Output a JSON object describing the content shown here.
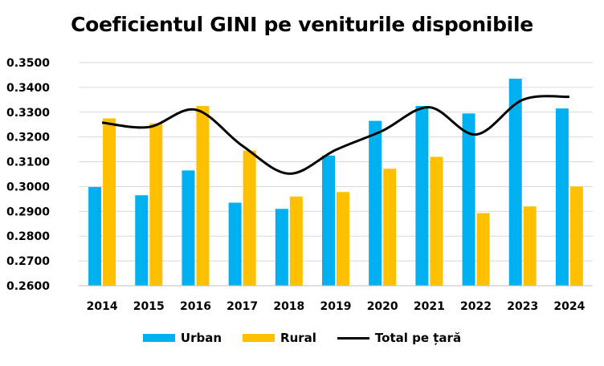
{
  "chart_data": {
    "type": "bar",
    "title": "Coeficientul GINI pe veniturile disponibile",
    "xlabel": "",
    "ylabel": "",
    "categories": [
      "2014",
      "2015",
      "2016",
      "2017",
      "2018",
      "2019",
      "2020",
      "2021",
      "2022",
      "2023",
      "2024"
    ],
    "ylim": [
      0.26,
      0.35
    ],
    "yticks": [
      "0.2600",
      "0.2700",
      "0.2800",
      "0.2900",
      "0.3000",
      "0.3100",
      "0.3200",
      "0.3300",
      "0.3400",
      "0.3500"
    ],
    "grid": true,
    "legend_position": "bottom",
    "series": [
      {
        "name": "Urban",
        "type": "bar",
        "color": "#00B0F0",
        "values": [
          0.2998,
          0.2965,
          0.3065,
          0.2935,
          0.291,
          0.3125,
          0.3265,
          0.3325,
          0.3295,
          0.3435,
          0.3315
        ]
      },
      {
        "name": "Rural",
        "type": "bar",
        "color": "#FFC000",
        "values": [
          0.3275,
          0.3255,
          0.3325,
          0.3145,
          0.296,
          0.2978,
          0.3072,
          0.312,
          0.2893,
          0.292,
          0.3
        ]
      },
      {
        "name": "Total pe țară",
        "type": "line",
        "color": "#000000",
        "values": [
          0.3258,
          0.324,
          0.331,
          0.3165,
          0.3052,
          0.3148,
          0.3225,
          0.332,
          0.321,
          0.335,
          0.3362
        ]
      }
    ]
  }
}
